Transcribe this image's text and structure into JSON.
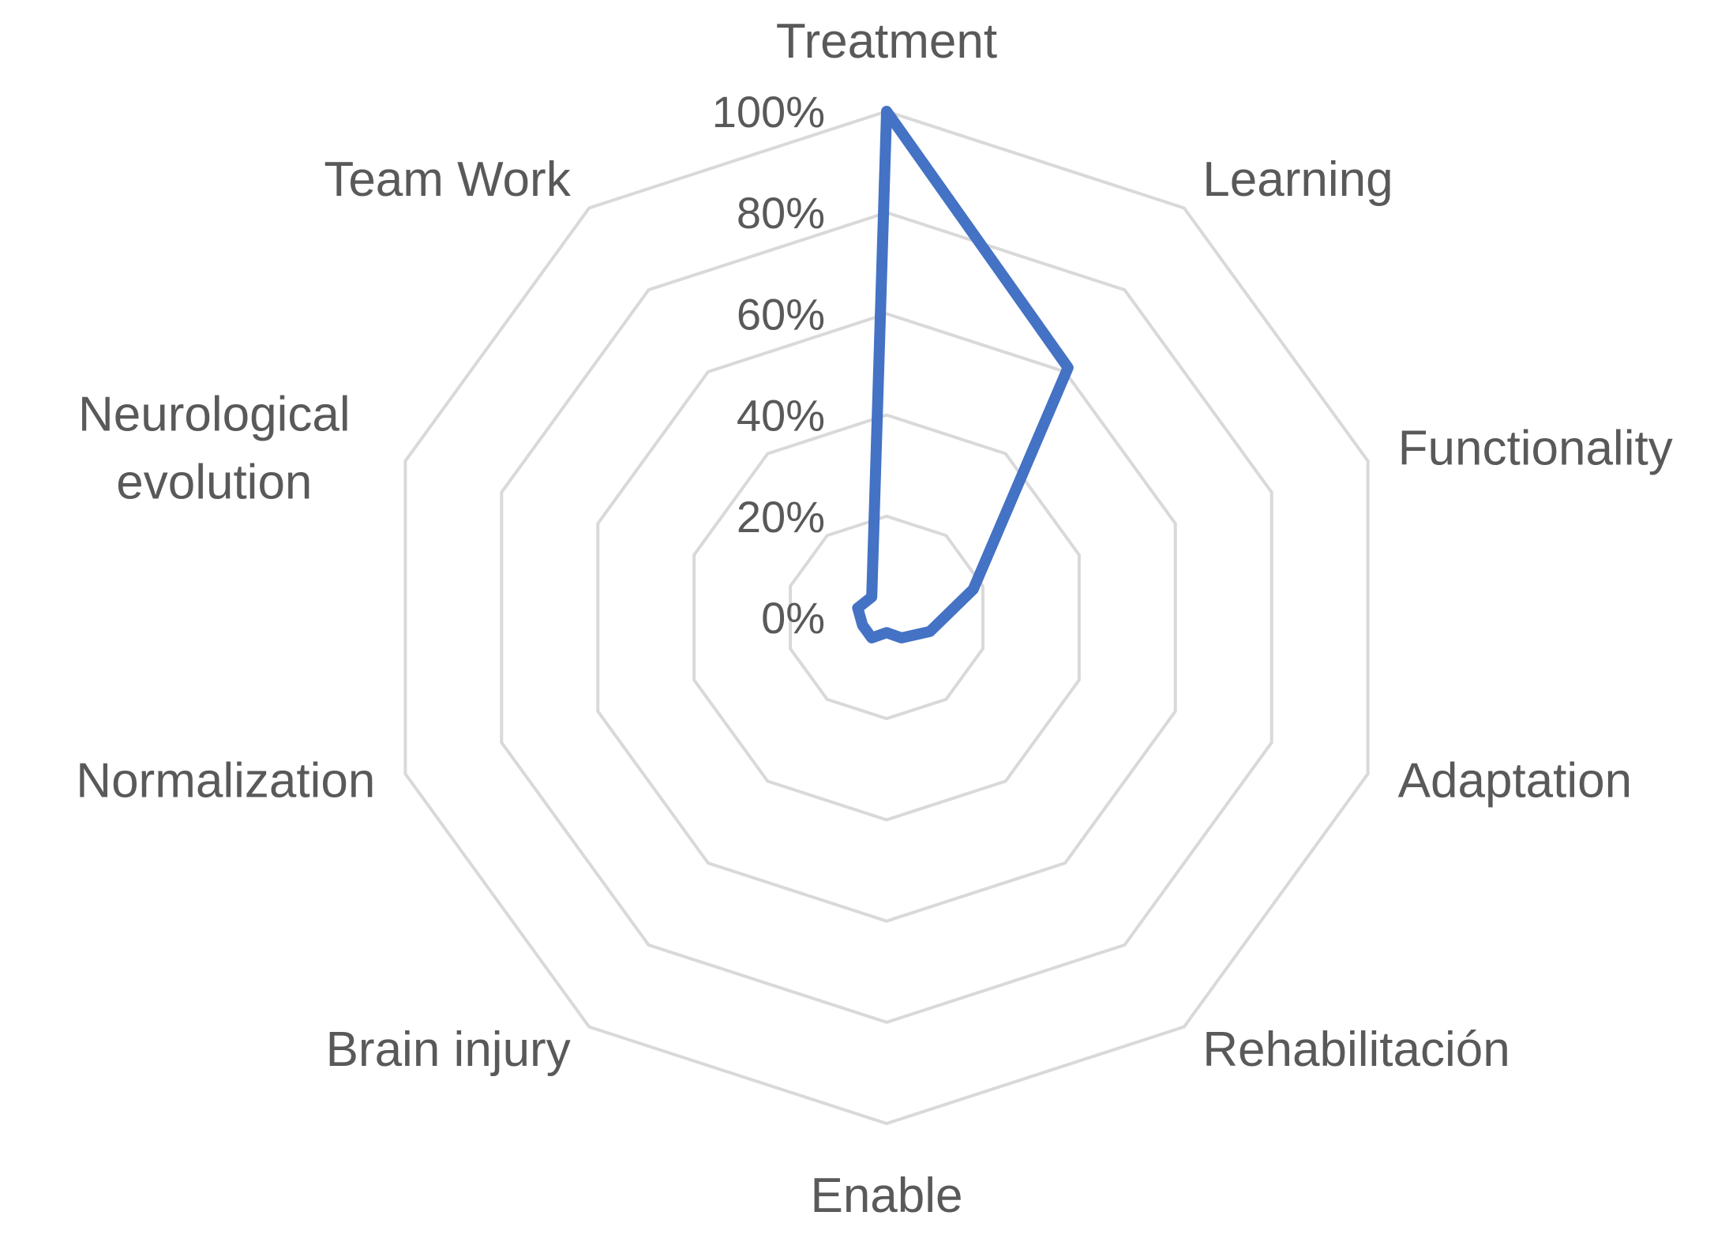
{
  "chart_data": {
    "type": "radar",
    "categories": [
      "Treatment",
      "Learning",
      "Functionality",
      "Adaptation",
      "Rehabilitación",
      "Enable",
      "Brain injury",
      "Normalization",
      "Neurological evolution",
      "Team Work"
    ],
    "category_lines": [
      [
        "Treatment"
      ],
      [
        "Learning"
      ],
      [
        "Functionality"
      ],
      [
        "Adaptation"
      ],
      [
        "Rehabilitación"
      ],
      [
        "Enable"
      ],
      [
        "Brain injury"
      ],
      [
        "Normalization"
      ],
      [
        "Neurological",
        "evolution"
      ],
      [
        "Team Work"
      ]
    ],
    "series": [
      {
        "values": [
          1.0,
          0.61,
          0.18,
          0.09,
          0.05,
          0.03,
          0.05,
          0.05,
          0.06,
          0.05
        ],
        "color": "#4472c4"
      }
    ],
    "ticks": [
      "0%",
      "20%",
      "40%",
      "60%",
      "80%",
      "100%"
    ],
    "range": [
      0,
      1
    ],
    "grid": true,
    "legend": "none"
  }
}
